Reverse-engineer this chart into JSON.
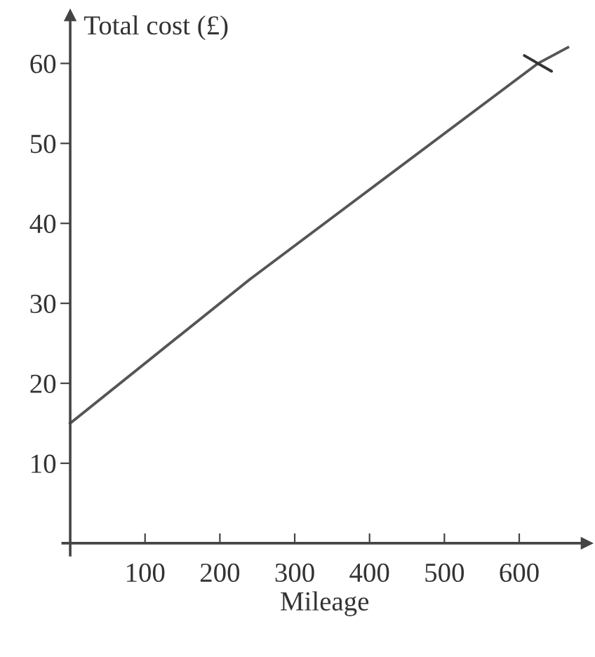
{
  "chart_data": {
    "type": "line",
    "xlabel": "Mileage",
    "ylabel": "Total cost (£)",
    "series": [
      {
        "color": "#555555",
        "x": [
          0,
          240,
          625,
          665
        ],
        "values": [
          15,
          33,
          60,
          62
        ],
        "marker": "none",
        "line_style": "solid"
      },
      {
        "type": "scatter",
        "color": "#333333",
        "x": [
          625
        ],
        "values": [
          60
        ],
        "marker": "cross"
      }
    ],
    "xlim": [
      -10,
      690
    ],
    "ylim": [
      -1.5,
      66
    ],
    "xticks": [
      100,
      200,
      300,
      400,
      500,
      600
    ],
    "yticks": [
      10,
      20,
      30,
      40,
      50,
      60
    ],
    "grid": false,
    "legend": false
  }
}
